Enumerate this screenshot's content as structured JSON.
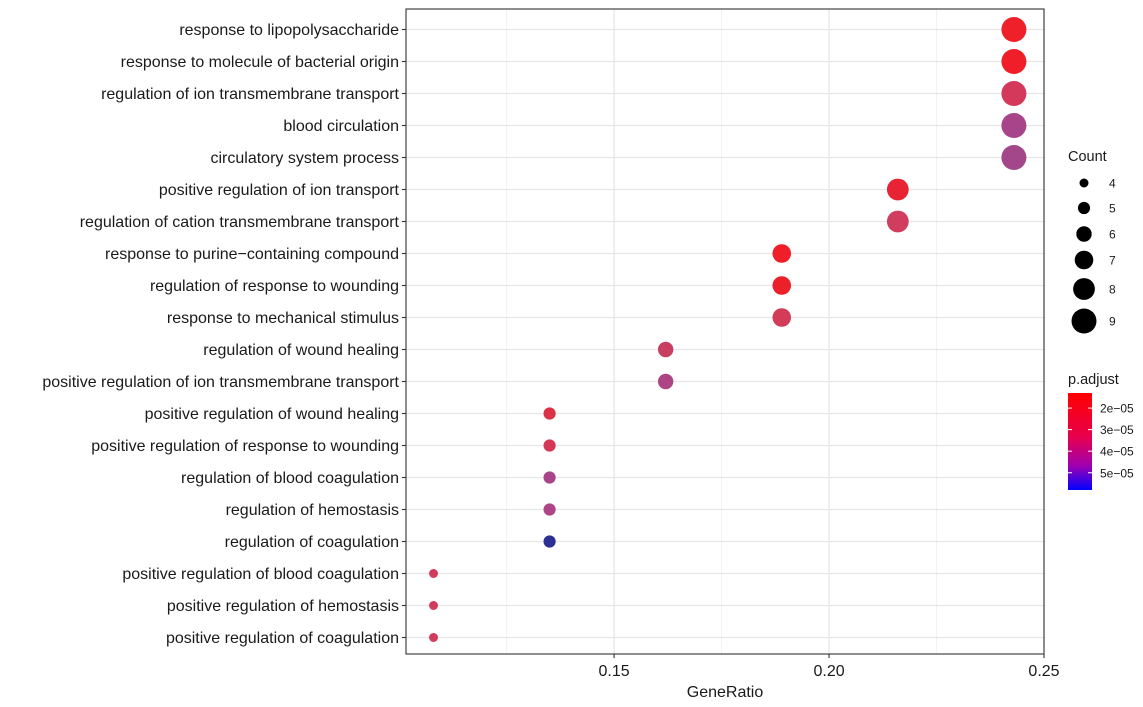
{
  "chart_data": {
    "type": "scatter",
    "title": "",
    "xlabel": "GeneRatio",
    "ylabel": "",
    "xlim": [
      0.1016,
      0.25
    ],
    "x_ticks": [
      {
        "value": 0.15,
        "label": "0.15"
      },
      {
        "value": 0.2,
        "label": "0.20"
      },
      {
        "value": 0.25,
        "label": "0.25"
      }
    ],
    "x_minor_ticks": [
      0.125,
      0.175,
      0.225
    ],
    "grid": true,
    "categories": [
      "response to lipopolysaccharide",
      "response to molecule of bacterial origin",
      "regulation of ion transmembrane transport",
      "blood circulation",
      "circulatory system process",
      "positive regulation of ion transport",
      "regulation of cation transmembrane transport",
      "response to purine−containing compound",
      "regulation of response to wounding",
      "response to mechanical stimulus",
      "regulation of wound healing",
      "positive regulation of ion transmembrane transport",
      "positive regulation of wound healing",
      "positive regulation of response to wounding",
      "regulation of blood coagulation",
      "regulation of hemostasis",
      "regulation of coagulation",
      "positive regulation of blood coagulation",
      "positive regulation of hemostasis",
      "positive regulation of coagulation"
    ],
    "points": [
      {
        "term": "response to lipopolysaccharide",
        "gene_ratio": 0.243,
        "count": 9,
        "color": "#f0202a"
      },
      {
        "term": "response to molecule of bacterial origin",
        "gene_ratio": 0.243,
        "count": 9,
        "color": "#f01e28"
      },
      {
        "term": "regulation of ion transmembrane transport",
        "gene_ratio": 0.243,
        "count": 9,
        "color": "#d4385a"
      },
      {
        "term": "blood circulation",
        "gene_ratio": 0.243,
        "count": 9,
        "color": "#a8448a"
      },
      {
        "term": "circulatory system process",
        "gene_ratio": 0.243,
        "count": 9,
        "color": "#a4478a"
      },
      {
        "term": "positive regulation of ion transport",
        "gene_ratio": 0.216,
        "count": 8,
        "color": "#e82434"
      },
      {
        "term": "regulation of cation transmembrane transport",
        "gene_ratio": 0.216,
        "count": 8,
        "color": "#d13d5e"
      },
      {
        "term": "response to purine−containing compound",
        "gene_ratio": 0.189,
        "count": 7,
        "color": "#ee1f28"
      },
      {
        "term": "regulation of response to wounding",
        "gene_ratio": 0.189,
        "count": 7,
        "color": "#ec2028"
      },
      {
        "term": "response to mechanical stimulus",
        "gene_ratio": 0.189,
        "count": 7,
        "color": "#d33c58"
      },
      {
        "term": "regulation of wound healing",
        "gene_ratio": 0.162,
        "count": 6,
        "color": "#c83f62"
      },
      {
        "term": "positive regulation of ion transmembrane transport",
        "gene_ratio": 0.162,
        "count": 6,
        "color": "#ad4584"
      },
      {
        "term": "positive regulation of wound healing",
        "gene_ratio": 0.135,
        "count": 5,
        "color": "#dc3247"
      },
      {
        "term": "positive regulation of response to wounding",
        "gene_ratio": 0.135,
        "count": 5,
        "color": "#d43856"
      },
      {
        "term": "regulation of blood coagulation",
        "gene_ratio": 0.135,
        "count": 5,
        "color": "#a9448a"
      },
      {
        "term": "regulation of hemostasis",
        "gene_ratio": 0.135,
        "count": 5,
        "color": "#ae4588"
      },
      {
        "term": "regulation of coagulation",
        "gene_ratio": 0.135,
        "count": 5,
        "color": "#2e2f92"
      },
      {
        "term": "positive regulation of blood coagulation",
        "gene_ratio": 0.108,
        "count": 4,
        "color": "#d13c5e"
      },
      {
        "term": "positive regulation of hemostasis",
        "gene_ratio": 0.108,
        "count": 4,
        "color": "#d13c5e"
      },
      {
        "term": "positive regulation of coagulation",
        "gene_ratio": 0.108,
        "count": 4,
        "color": "#d13c5e"
      }
    ],
    "legend_count": {
      "title": "Count",
      "values": [
        4,
        5,
        6,
        7,
        8,
        9
      ],
      "labels": [
        "4",
        "5",
        "6",
        "7",
        "8",
        "9"
      ]
    },
    "legend_padjust": {
      "title": "p.adjust",
      "ticks": [
        "2e−05",
        "3e−05",
        "4e−05",
        "5e−05"
      ],
      "tick_values": [
        2e-05,
        3e-05,
        4e-05,
        5e-05
      ],
      "range": [
        1.3e-05,
        5.8e-05
      ],
      "low_color": "#ff0000",
      "high_color": "#0000ff"
    },
    "legend_placement": "right"
  }
}
